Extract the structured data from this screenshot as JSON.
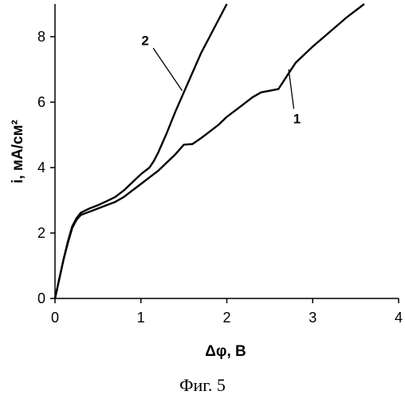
{
  "chart_data": {
    "type": "line",
    "xlabel": "Δφ, В",
    "ylabel": "i, мА/см²",
    "xlim": [
      0,
      4
    ],
    "ylim": [
      0,
      9
    ],
    "x_ticks": [
      "0",
      "1",
      "2",
      "3",
      "4"
    ],
    "y_ticks": [
      "0",
      "2",
      "4",
      "6",
      "8"
    ],
    "grid": false,
    "series": [
      {
        "name": "1",
        "color": "#000000",
        "points": [
          [
            0,
            0
          ],
          [
            0.05,
            0.6
          ],
          [
            0.1,
            1.2
          ],
          [
            0.15,
            1.7
          ],
          [
            0.2,
            2.15
          ],
          [
            0.25,
            2.4
          ],
          [
            0.3,
            2.55
          ],
          [
            0.4,
            2.65
          ],
          [
            0.5,
            2.75
          ],
          [
            0.6,
            2.85
          ],
          [
            0.7,
            2.95
          ],
          [
            0.8,
            3.1
          ],
          [
            0.9,
            3.3
          ],
          [
            1.0,
            3.5
          ],
          [
            1.1,
            3.7
          ],
          [
            1.2,
            3.9
          ],
          [
            1.3,
            4.15
          ],
          [
            1.4,
            4.4
          ],
          [
            1.5,
            4.7
          ],
          [
            1.6,
            4.72
          ],
          [
            1.7,
            4.9
          ],
          [
            1.8,
            5.1
          ],
          [
            1.9,
            5.3
          ],
          [
            2.0,
            5.55
          ],
          [
            2.1,
            5.75
          ],
          [
            2.2,
            5.95
          ],
          [
            2.3,
            6.15
          ],
          [
            2.4,
            6.3
          ],
          [
            2.5,
            6.35
          ],
          [
            2.6,
            6.4
          ],
          [
            2.7,
            6.8
          ],
          [
            2.8,
            7.2
          ],
          [
            3.0,
            7.7
          ],
          [
            3.2,
            8.15
          ],
          [
            3.4,
            8.6
          ],
          [
            3.6,
            9.0
          ]
        ]
      },
      {
        "name": "2",
        "color": "#000000",
        "points": [
          [
            0,
            0
          ],
          [
            0.05,
            0.6
          ],
          [
            0.1,
            1.2
          ],
          [
            0.15,
            1.75
          ],
          [
            0.2,
            2.2
          ],
          [
            0.25,
            2.45
          ],
          [
            0.3,
            2.62
          ],
          [
            0.4,
            2.75
          ],
          [
            0.5,
            2.85
          ],
          [
            0.6,
            2.97
          ],
          [
            0.7,
            3.1
          ],
          [
            0.8,
            3.3
          ],
          [
            0.9,
            3.55
          ],
          [
            1.0,
            3.8
          ],
          [
            1.1,
            4.0
          ],
          [
            1.15,
            4.2
          ],
          [
            1.2,
            4.45
          ],
          [
            1.3,
            5.05
          ],
          [
            1.4,
            5.7
          ],
          [
            1.5,
            6.3
          ],
          [
            1.6,
            6.9
          ],
          [
            1.7,
            7.5
          ],
          [
            1.8,
            8.0
          ],
          [
            1.9,
            8.5
          ],
          [
            2.0,
            9.0
          ]
        ]
      }
    ],
    "annotations": [
      {
        "text": "1",
        "series": "1"
      },
      {
        "text": "2",
        "series": "2"
      }
    ],
    "caption": "Фиг. 5"
  }
}
